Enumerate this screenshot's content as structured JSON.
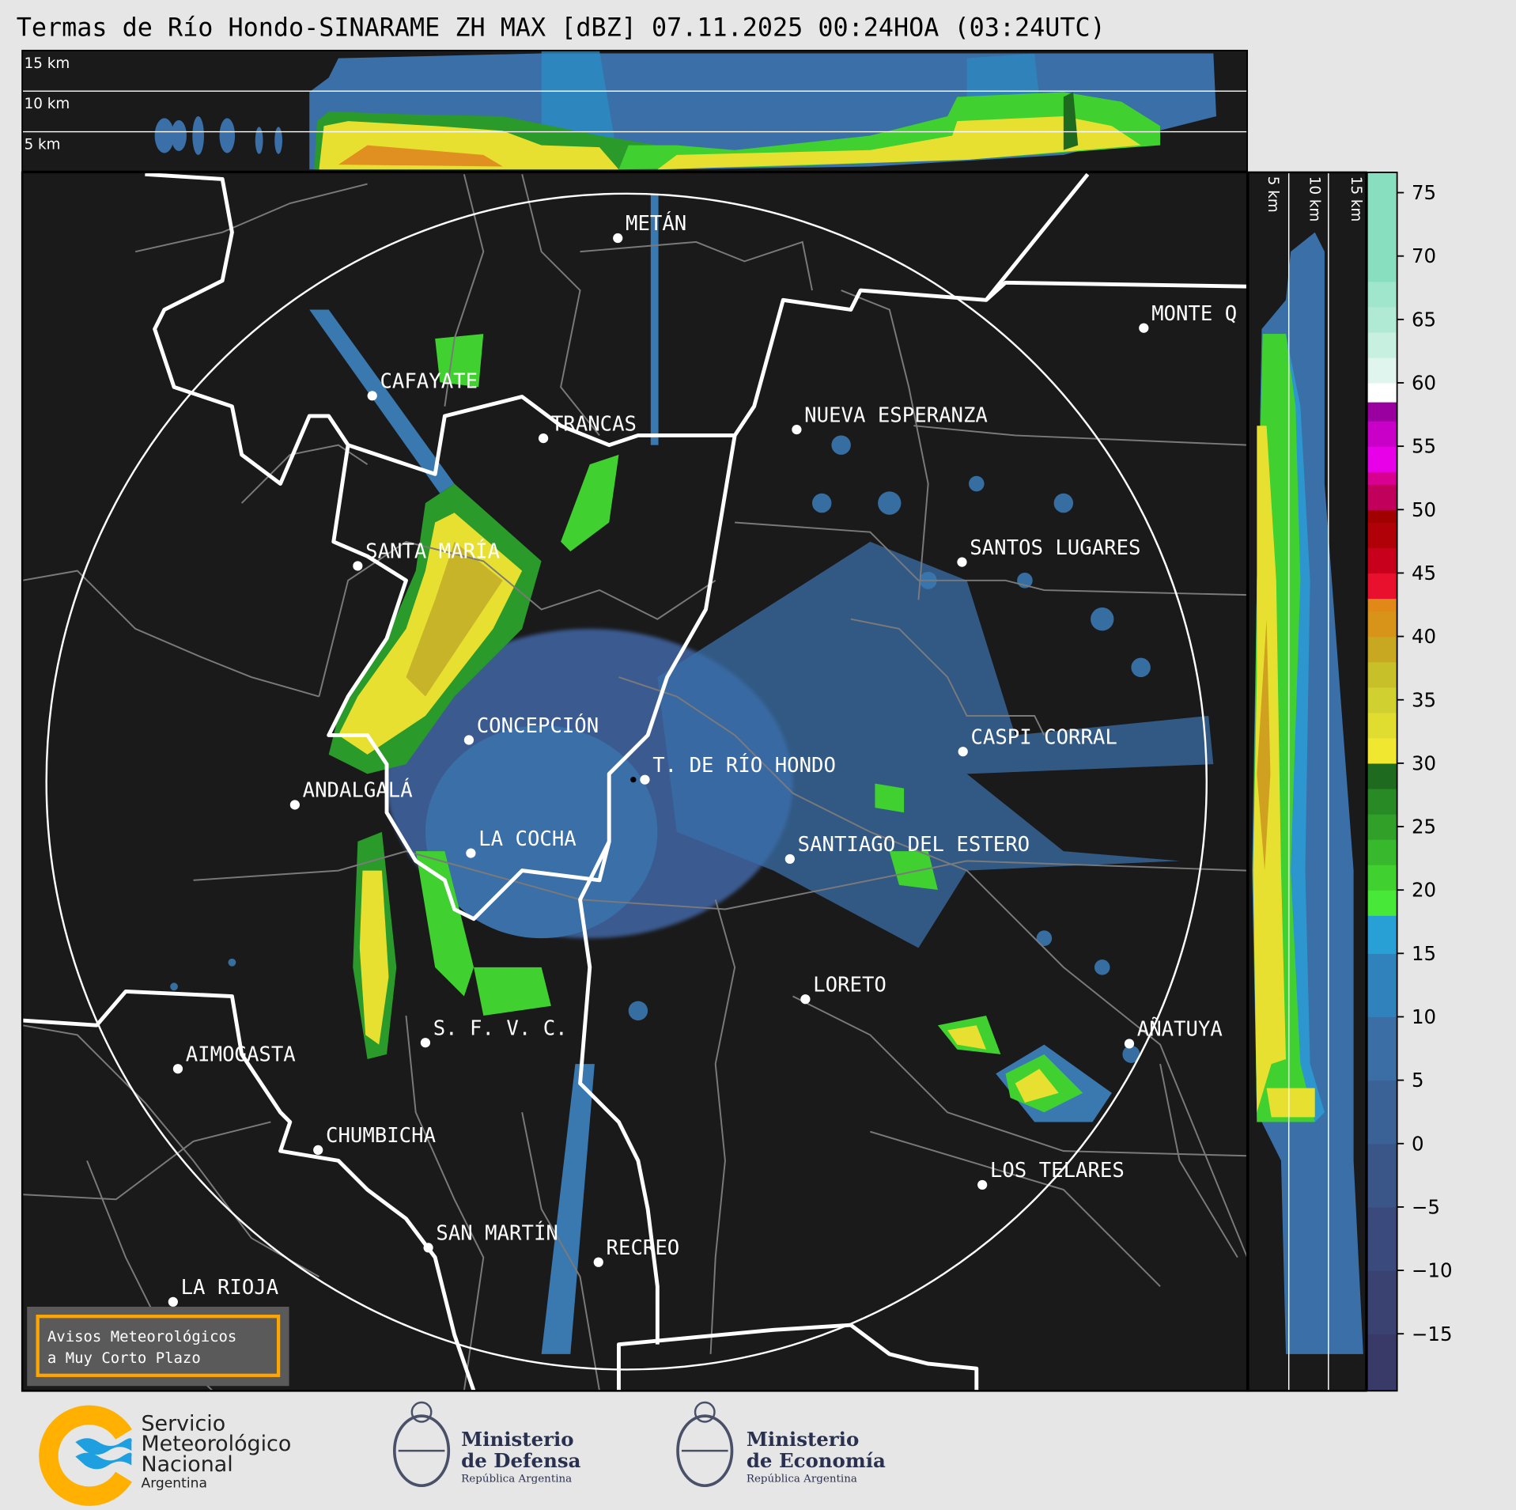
{
  "title": "Termas de Río Hondo-SINARAME ZH MAX [dBZ] 07.11.2025 00:24HOA (03:24UTC)",
  "top_section": {
    "height_labels": [
      "15 km",
      "10 km",
      "5 km"
    ]
  },
  "side_section": {
    "height_labels": [
      "5 km",
      "10 km",
      "15 km"
    ]
  },
  "colorbar": {
    "unit": "dBZ",
    "ticks": [
      "75",
      "70",
      "65",
      "60",
      "55",
      "50",
      "45",
      "40",
      "35",
      "30",
      "25",
      "20",
      "15",
      "10",
      "5",
      "0",
      "−5",
      "−10",
      "−15"
    ],
    "range": [
      -19.5,
      76.6
    ],
    "colors": {
      "very_low": "#3a3f6e",
      "low": "#3a5a90",
      "blue": "#3a78b0",
      "light_blue": "#2aa0d8",
      "green": "#40e030",
      "dark_green": "#1e6a1e",
      "yellow": "#f0e830",
      "olive": "#c8b428",
      "orange": "#e08818",
      "red": "#e8102c",
      "dark_red": "#a00000",
      "magenta": "#e800e8",
      "purple": "#9a00a0",
      "white": "#ffffff",
      "mint": "#88dfc0"
    }
  },
  "map": {
    "ring_color": "#ffffff",
    "cities": [
      "METÁN",
      "MONTE Q",
      "CAFAYATE",
      "TRANCAS",
      "NUEVA ESPERANZA",
      "SANTA MARÍA",
      "SANTOS LUGARES",
      "CONCEPCIÓN",
      "CASPI CORRAL",
      "T. DE RÍO HONDO",
      "ANDALGALÁ",
      "LA COCHA",
      "SANTIAGO DEL ESTERO",
      "LORETO",
      "S. F. V. C.",
      "AÑATUYA",
      "AIMOGASTA",
      "CHUMBICHA",
      "LOS TELARES",
      "SAN MARTÍN",
      "RECREO",
      "LA RIOJA"
    ]
  },
  "alert_button": {
    "line1": "Avisos Meteorológicos",
    "line2": "a Muy Corto Plazo",
    "border_color": "#ffa500"
  },
  "logos": {
    "smn": {
      "line1": "Servicio",
      "line2": "Meteorológico",
      "line3": "Nacional",
      "line4": "Argentina"
    },
    "defensa": {
      "line1": "Ministerio",
      "line2": "de Defensa",
      "line3": "República Argentina"
    },
    "economia": {
      "line1": "Ministerio",
      "line2": "de Economía",
      "line3": "República Argentina"
    }
  }
}
